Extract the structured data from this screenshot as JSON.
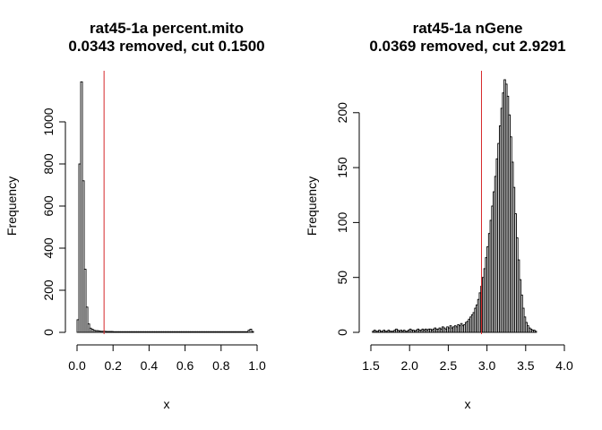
{
  "chart_data": [
    {
      "type": "bar",
      "title": "rat45-1a percent.mito",
      "subtitle": "0.0343 removed, cut 0.1500",
      "xlabel": "x",
      "ylabel": "Frequency",
      "xlim": [
        0,
        1
      ],
      "ylim": [
        0,
        1200
      ],
      "x_ticks": [
        "0.0",
        "0.2",
        "0.4",
        "0.6",
        "0.8",
        "1.0"
      ],
      "y_ticks": [
        "0",
        "200",
        "400",
        "600",
        "800",
        "1000"
      ],
      "cut": 0.15,
      "cut_color": "#d62728",
      "bin_width": 0.01,
      "bin_start": 0.0,
      "values": [
        60,
        800,
        1190,
        720,
        300,
        120,
        40,
        20,
        15,
        10,
        8,
        8,
        6,
        5,
        5,
        5,
        4,
        4,
        4,
        4,
        3,
        3,
        3,
        3,
        3,
        3,
        3,
        3,
        3,
        3,
        3,
        3,
        3,
        3,
        3,
        3,
        3,
        3,
        3,
        3,
        3,
        3,
        3,
        3,
        3,
        3,
        3,
        3,
        3,
        3,
        3,
        3,
        3,
        3,
        3,
        3,
        3,
        3,
        3,
        3,
        3,
        3,
        3,
        3,
        3,
        3,
        3,
        3,
        3,
        3,
        3,
        3,
        3,
        3,
        3,
        3,
        3,
        3,
        3,
        3,
        3,
        3,
        3,
        3,
        3,
        3,
        3,
        3,
        3,
        3,
        3,
        3,
        3,
        3,
        3,
        10,
        15,
        4
      ]
    },
    {
      "type": "bar",
      "title": "rat45-1a nGene",
      "subtitle": "0.0369 removed, cut 2.9291",
      "xlabel": "x",
      "ylabel": "Frequency",
      "xlim": [
        1.5,
        4.0
      ],
      "ylim": [
        0,
        230
      ],
      "x_ticks": [
        "1.5",
        "2.0",
        "2.5",
        "3.0",
        "3.5",
        "4.0"
      ],
      "y_ticks": [
        "0",
        "50",
        "100",
        "150",
        "200"
      ],
      "cut": 2.9291,
      "cut_color": "#d62728",
      "bin_width": 0.02,
      "bin_start": 1.52,
      "values": [
        1,
        2,
        1,
        1,
        2,
        1,
        1,
        2,
        1,
        1,
        2,
        1,
        1,
        1,
        2,
        3,
        2,
        1,
        2,
        1,
        2,
        1,
        1,
        2,
        3,
        2,
        2,
        1,
        2,
        3,
        2,
        2,
        3,
        2,
        3,
        2,
        3,
        3,
        2,
        3,
        4,
        3,
        3,
        4,
        3,
        5,
        4,
        3,
        5,
        4,
        6,
        4,
        5,
        6,
        5,
        7,
        6,
        8,
        6,
        7,
        9,
        10,
        12,
        14,
        16,
        18,
        22,
        25,
        30,
        36,
        42,
        50,
        58,
        68,
        78,
        90,
        102,
        115,
        128,
        142,
        158,
        172,
        188,
        204,
        218,
        230,
        226,
        215,
        198,
        178,
        155,
        132,
        108,
        86,
        66,
        48,
        34,
        22,
        14,
        9,
        6,
        4,
        3,
        2,
        2,
        1
      ]
    }
  ]
}
